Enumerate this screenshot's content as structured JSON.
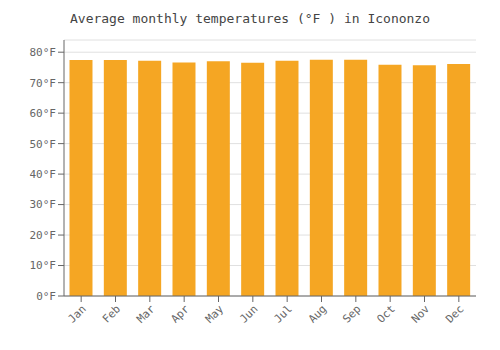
{
  "chart_data": {
    "type": "bar",
    "title": "Average monthly temperatures (°F ) in Icononzo",
    "categories": [
      "Jan",
      "Feb",
      "Mar",
      "Apr",
      "May",
      "Jun",
      "Jul",
      "Aug",
      "Sep",
      "Oct",
      "Nov",
      "Dec"
    ],
    "values": [
      77.4,
      77.4,
      77.2,
      76.6,
      77.0,
      76.5,
      77.2,
      77.5,
      77.5,
      75.9,
      75.7,
      76.1
    ],
    "color": "#F5A623",
    "ylim": [
      0,
      84
    ],
    "yticks": [
      {
        "value": 0,
        "label": "0°F"
      },
      {
        "value": 10,
        "label": "10°F"
      },
      {
        "value": 20,
        "label": "20°F"
      },
      {
        "value": 30,
        "label": "30°F"
      },
      {
        "value": 40,
        "label": "40°F"
      },
      {
        "value": 50,
        "label": "50°F"
      },
      {
        "value": 60,
        "label": "60°F"
      },
      {
        "value": 70,
        "label": "70°F"
      },
      {
        "value": 80,
        "label": "80°F"
      }
    ],
    "grid": true
  }
}
